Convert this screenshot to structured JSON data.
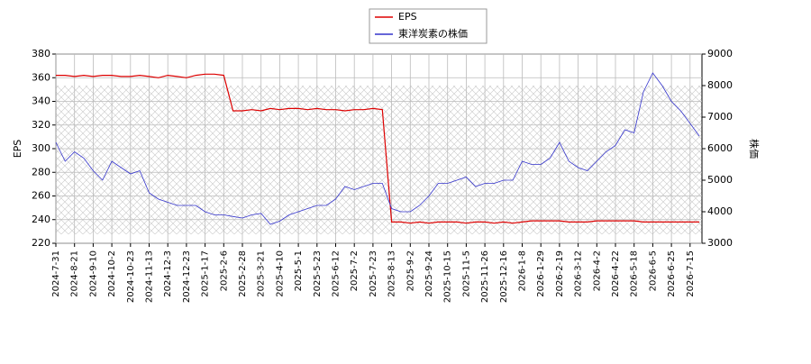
{
  "chart_data": {
    "type": "line",
    "categories": [
      "2024-7-31",
      null,
      "2024-8-21",
      null,
      "2024-9-10",
      null,
      "2024-10-2",
      null,
      "2024-10-23",
      null,
      "2024-11-13",
      null,
      "2024-12-3",
      null,
      "2024-12-23",
      null,
      "2025-1-17",
      null,
      "2025-2-6",
      null,
      "2025-2-28",
      null,
      "2025-3-21",
      null,
      "2025-4-10",
      null,
      "2025-5-1",
      null,
      "2025-5-23",
      null,
      "2025-6-12",
      null,
      "2025-7-2",
      null,
      "2025-7-23",
      null,
      "2025-8-13",
      null,
      "2025-9-2",
      null,
      "2025-9-24",
      null,
      "2025-10-15",
      null,
      "2025-11-5",
      null,
      "2025-11-26",
      null,
      "2025-12-16",
      null,
      "2026-1-8",
      null,
      "2026-1-29",
      null,
      "2026-2-19",
      null,
      "2026-3-12",
      null,
      "2026-4-2",
      null,
      "2026-4-22",
      null,
      "2026-5-18",
      null,
      "2026-6-5",
      null,
      "2026-6-25",
      null,
      "2026-7-15",
      null
    ],
    "series": [
      {
        "name": "EPS",
        "color": "#dd0000",
        "axis": "y",
        "values": [
          362,
          362,
          361,
          362,
          361,
          362,
          362,
          361,
          361,
          362,
          361,
          360,
          362,
          361,
          360,
          362,
          363,
          363,
          362,
          332,
          332,
          333,
          332,
          334,
          333,
          334,
          334,
          333,
          334,
          333,
          333,
          332,
          333,
          333,
          334,
          333,
          238,
          238,
          237,
          238,
          237,
          238,
          238,
          238,
          237,
          238,
          238,
          237,
          238,
          237,
          238,
          239,
          239,
          239,
          239,
          238,
          238,
          238,
          239,
          239,
          239,
          239,
          239,
          238,
          238,
          238,
          238,
          238,
          238,
          238
        ]
      },
      {
        "name": "東洋炭素の株価",
        "color": "#3333cc",
        "axis": "y2",
        "values": [
          6200,
          5600,
          5900,
          5700,
          5300,
          5000,
          5600,
          5400,
          5200,
          5300,
          4600,
          4400,
          4300,
          4200,
          4200,
          4200,
          4000,
          3900,
          3900,
          3850,
          3800,
          3900,
          3950,
          3600,
          3700,
          3900,
          4000,
          4100,
          4200,
          4200,
          4400,
          4800,
          4700,
          4800,
          4900,
          4900,
          4100,
          4000,
          4000,
          4200,
          4500,
          4900,
          4900,
          5000,
          5100,
          4800,
          4900,
          4900,
          5000,
          5000,
          5600,
          5500,
          5500,
          5700,
          6200,
          5600,
          5400,
          5300,
          5600,
          5900,
          6100,
          6600,
          6500,
          7800,
          8400,
          8000,
          7500,
          7200,
          6800,
          6400
        ]
      }
    ],
    "ylabel": "EPS",
    "y2label": "株価",
    "ylim": [
      220,
      380
    ],
    "yticks": [
      220,
      240,
      260,
      280,
      300,
      320,
      340,
      360,
      380
    ],
    "y2lim": [
      3000,
      9000
    ],
    "y2ticks": [
      3000,
      4000,
      5000,
      6000,
      7000,
      8000,
      9000
    ],
    "grid": true,
    "legend": "top"
  }
}
